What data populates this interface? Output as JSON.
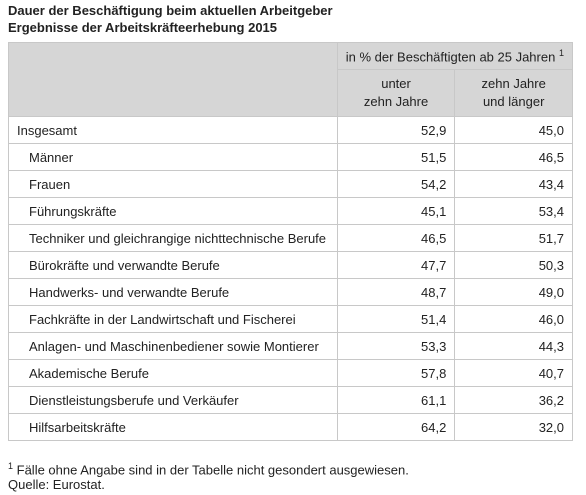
{
  "title": "Dauer der Beschäftigung beim aktuellen Arbeitgeber",
  "subtitle": "Ergebnisse der Arbeitskräfteerhebung 2015",
  "table": {
    "header": {
      "group": "in % der Beschäftigten ab 25 Jahren",
      "group_note": "1",
      "columns": [
        [
          "unter",
          "zehn Jahre"
        ],
        [
          "zehn Jahre",
          "und länger"
        ]
      ]
    },
    "rows": [
      [
        "Insgesamt",
        "52,9",
        "45,0"
      ],
      [
        "Männer",
        "51,5",
        "46,5"
      ],
      [
        "Frauen",
        "54,2",
        "43,4"
      ],
      [
        "Führungskräfte",
        "45,1",
        "53,4"
      ],
      [
        "Techniker und gleichrangige nichttechnische Berufe",
        "46,5",
        "51,7"
      ],
      [
        "Bürokräfte und verwandte Berufe",
        "47,7",
        "50,3"
      ],
      [
        "Handwerks- und verwandte Berufe",
        "48,7",
        "49,0"
      ],
      [
        "Fachkräfte in der Landwirtschaft und Fischerei",
        "51,4",
        "46,0"
      ],
      [
        "Anlagen- und Maschinenbediener sowie Montierer",
        "53,3",
        "44,3"
      ],
      [
        "Akademische Berufe",
        "57,8",
        "40,7"
      ],
      [
        "Dienstleistungsberufe und Verkäufer",
        "61,1",
        "36,2"
      ],
      [
        "Hilfsarbeitskräfte",
        "64,2",
        "32,0"
      ]
    ]
  },
  "footnote": {
    "mark": "1",
    "text": "Fälle ohne Angabe sind in der Tabelle nicht gesondert ausgewiesen."
  },
  "source": "Quelle: Eurostat."
}
